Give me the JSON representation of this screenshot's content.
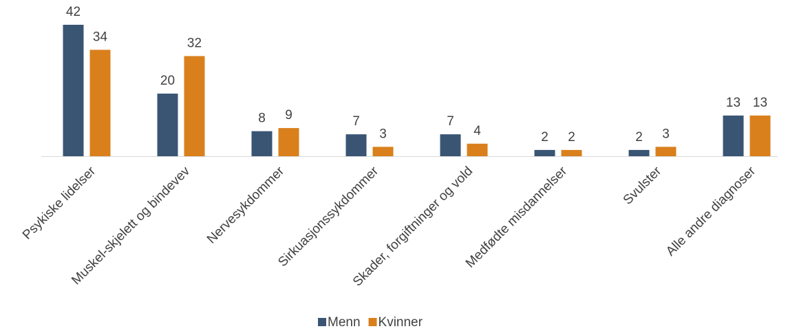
{
  "chart_data": {
    "type": "bar",
    "categories": [
      "Psykiske lidelser",
      "Muskel-skjelett og bindevev",
      "Nervesykdommer",
      "Sirkuasjonssykdommer",
      "Skader, forgiftninger og vold",
      "Medfødte misdannelser",
      "Svulster",
      "Alle andre diagnoser"
    ],
    "series": [
      {
        "name": "Menn",
        "color": "#3a5574",
        "values": [
          42,
          20,
          8,
          7,
          7,
          2,
          2,
          13
        ]
      },
      {
        "name": "Kvinner",
        "color": "#d9801d",
        "values": [
          34,
          32,
          9,
          3,
          4,
          2,
          3,
          13
        ]
      }
    ],
    "legend": "bottom"
  }
}
